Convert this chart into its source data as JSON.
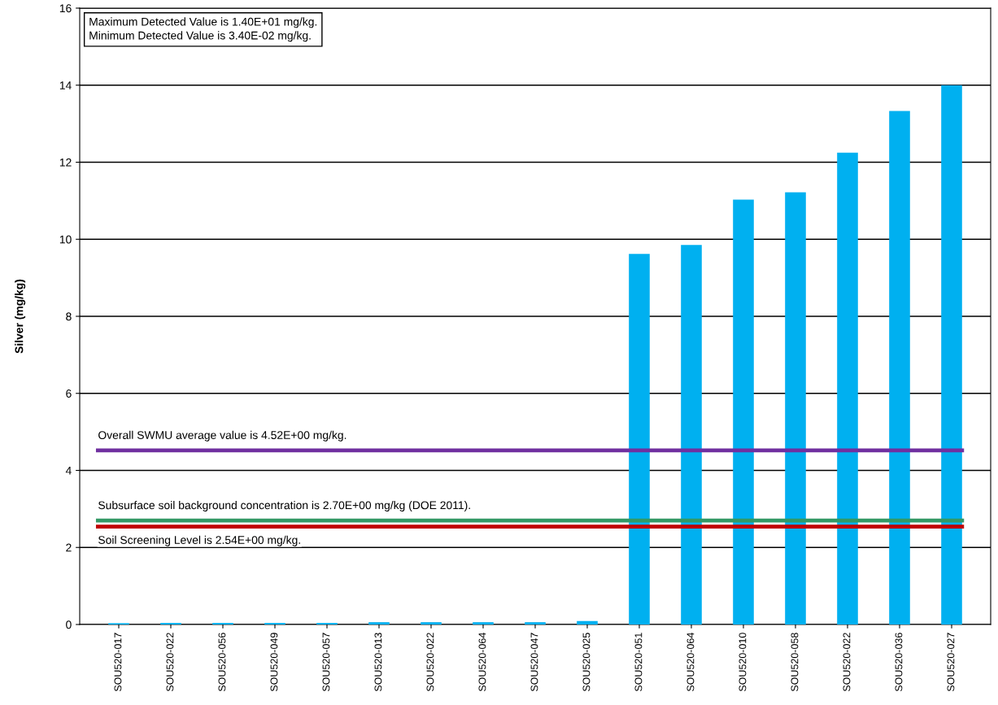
{
  "chart_data": {
    "type": "bar",
    "ylabel": "Silver (mg/kg)",
    "categories": [
      "SOU520-017",
      "SOU520-022",
      "SOU520-056",
      "SOU520-049",
      "SOU520-057",
      "SOU520-013",
      "SOU520-022",
      "SOU520-064",
      "SOU520-047",
      "SOU520-025",
      "SOU520-051",
      "SOU520-064",
      "SOU520-010",
      "SOU520-058",
      "SOU520-022",
      "SOU520-036",
      "SOU520-027"
    ],
    "values": [
      0.034,
      0.04,
      0.04,
      0.04,
      0.04,
      0.06,
      0.06,
      0.06,
      0.06,
      0.09,
      9.62,
      9.85,
      11.03,
      11.22,
      12.25,
      13.33,
      14.0
    ],
    "color": "#00b0f0",
    "ylim": [
      0,
      16
    ],
    "yticks": [
      0,
      2,
      4,
      6,
      8,
      10,
      12,
      14,
      16
    ],
    "grid": "y",
    "ref_lines": [
      {
        "axis": "y",
        "value": 4.52,
        "label": "Overall SWMU average value is 4.52E+00 mg/kg.",
        "color": "#7030a0"
      },
      {
        "axis": "y",
        "value": 2.7,
        "label": "Subsurface soil background concentration is 2.70E+00 mg/kg (DOE 2011).",
        "color": "#339966"
      },
      {
        "axis": "y",
        "value": 2.54,
        "label": "Soil Screening Level is 2.54E+00 mg/kg.",
        "color": "#c00000"
      }
    ],
    "annotations": [
      "Maximum Detected Value is 1.40E+01 mg/kg.\nMinimum Detected Value is 3.40E-02 mg/kg."
    ]
  }
}
